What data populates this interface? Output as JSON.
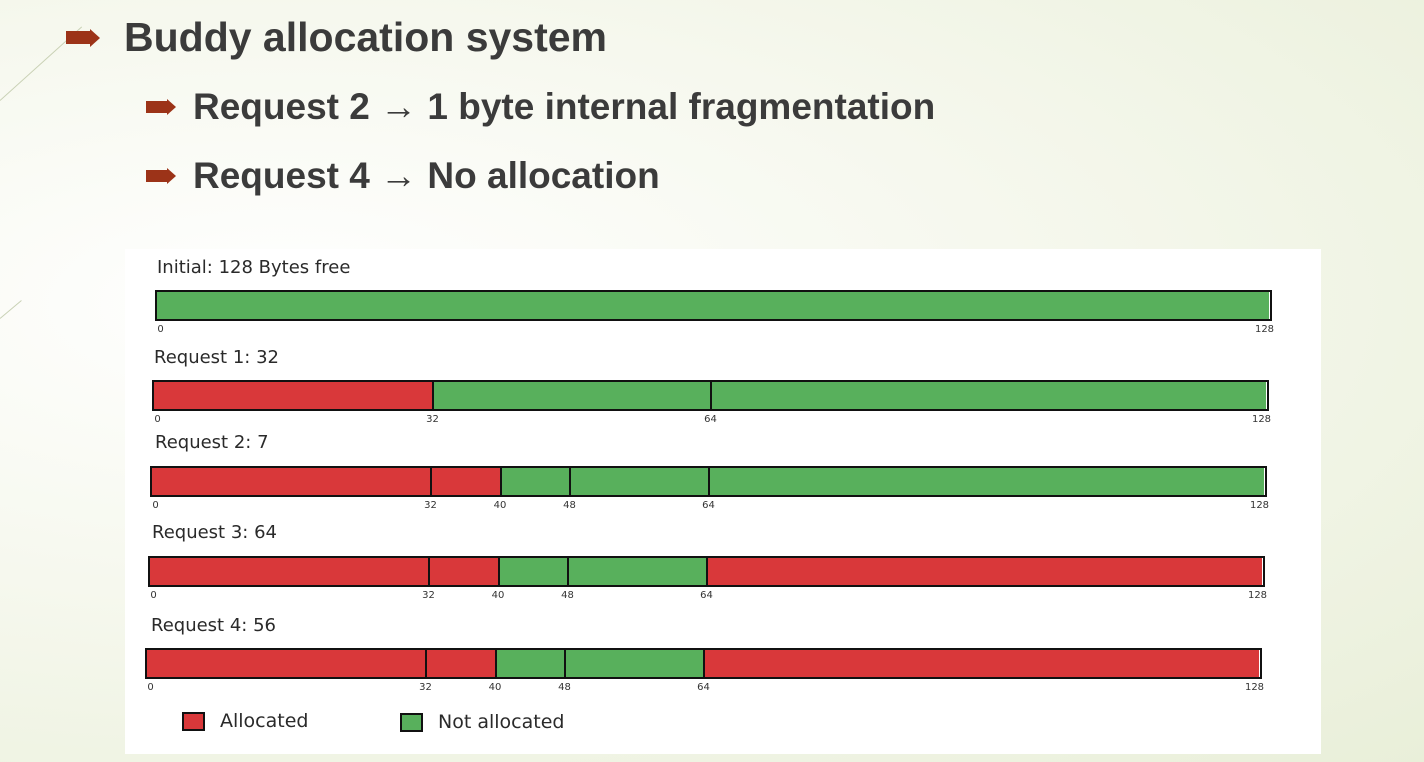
{
  "slide": {
    "title": "Buddy allocation system",
    "bullets": [
      "Request 2 → 1 byte internal fragmentation",
      "Request 4 → No allocation"
    ]
  },
  "diagram": {
    "total": 128,
    "colors": {
      "allocated": "#d9383a",
      "free": "#58b05c"
    },
    "rows": [
      {
        "label": "Initial: 128 Bytes free",
        "segments": [
          {
            "start": 0,
            "end": 128,
            "state": "free"
          }
        ],
        "ticks": [
          "0",
          "128"
        ]
      },
      {
        "label": "Request 1: 32",
        "segments": [
          {
            "start": 0,
            "end": 32,
            "state": "allocated"
          },
          {
            "start": 32,
            "end": 64,
            "state": "free"
          },
          {
            "start": 64,
            "end": 128,
            "state": "free"
          }
        ],
        "ticks": [
          "0",
          "32",
          "64",
          "128"
        ]
      },
      {
        "label": "Request 2: 7",
        "segments": [
          {
            "start": 0,
            "end": 32,
            "state": "allocated"
          },
          {
            "start": 32,
            "end": 40,
            "state": "allocated"
          },
          {
            "start": 40,
            "end": 48,
            "state": "free"
          },
          {
            "start": 48,
            "end": 64,
            "state": "free"
          },
          {
            "start": 64,
            "end": 128,
            "state": "free"
          }
        ],
        "ticks": [
          "0",
          "32",
          "40",
          "48",
          "64",
          "128"
        ]
      },
      {
        "label": "Request 3: 64",
        "segments": [
          {
            "start": 0,
            "end": 32,
            "state": "allocated"
          },
          {
            "start": 32,
            "end": 40,
            "state": "allocated"
          },
          {
            "start": 40,
            "end": 48,
            "state": "free"
          },
          {
            "start": 48,
            "end": 64,
            "state": "free"
          },
          {
            "start": 64,
            "end": 128,
            "state": "allocated"
          }
        ],
        "ticks": [
          "0",
          "32",
          "40",
          "48",
          "64",
          "128"
        ]
      },
      {
        "label": "Request 4: 56",
        "segments": [
          {
            "start": 0,
            "end": 32,
            "state": "allocated"
          },
          {
            "start": 32,
            "end": 40,
            "state": "allocated"
          },
          {
            "start": 40,
            "end": 48,
            "state": "free"
          },
          {
            "start": 48,
            "end": 64,
            "state": "free"
          },
          {
            "start": 64,
            "end": 128,
            "state": "allocated"
          }
        ],
        "ticks": [
          "0",
          "32",
          "40",
          "48",
          "64",
          "128"
        ]
      }
    ],
    "legend": {
      "allocated_label": "Allocated",
      "free_label": "Not allocated"
    }
  }
}
